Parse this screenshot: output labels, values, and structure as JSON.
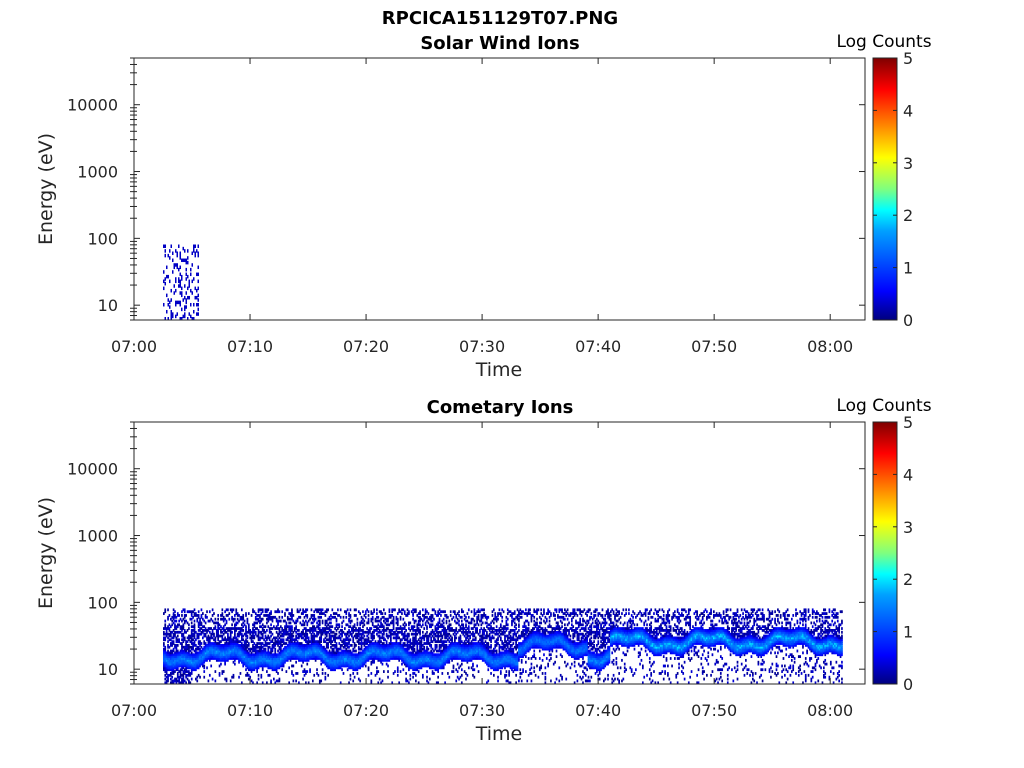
{
  "figure": {
    "filename": "RPCICA151129T07.PNG"
  },
  "colormap": {
    "stops": [
      "#00007f",
      "#0000ff",
      "#007fff",
      "#00ffff",
      "#7fff7f",
      "#ffff00",
      "#ff7f00",
      "#ff0000",
      "#7f0000"
    ]
  },
  "chart_data": [
    {
      "type": "heatmap",
      "title": "Solar Wind Ions",
      "xlabel": "Time",
      "ylabel": "Energy (eV)",
      "y_scale": "log",
      "xlim": [
        "07:00",
        "08:03"
      ],
      "ylim": [
        6,
        50000
      ],
      "x_ticks": [
        "07:00",
        "07:10",
        "07:20",
        "07:30",
        "07:40",
        "07:50",
        "08:00"
      ],
      "y_ticks": [
        {
          "value": 10,
          "label": "10"
        },
        {
          "value": 100,
          "label": "100"
        },
        {
          "value": 1000,
          "label": "1000"
        },
        {
          "value": 10000,
          "label": "10000"
        }
      ],
      "colorbar": {
        "label": "Log Counts",
        "range": [
          0,
          5
        ],
        "ticks": [
          "0",
          "1",
          "2",
          "3",
          "4",
          "5"
        ]
      },
      "data_summary": [
        {
          "t_start": "07:02.5",
          "t_end": "07:05.5",
          "e_min": 6,
          "e_max": 75,
          "log_counts": 0.3
        }
      ]
    },
    {
      "type": "heatmap",
      "title": "Cometary Ions",
      "xlabel": "Time",
      "ylabel": "Energy (eV)",
      "y_scale": "log",
      "xlim": [
        "07:00",
        "08:03"
      ],
      "ylim": [
        6,
        50000
      ],
      "x_ticks": [
        "07:00",
        "07:10",
        "07:20",
        "07:30",
        "07:40",
        "07:50",
        "08:00"
      ],
      "y_ticks": [
        {
          "value": 10,
          "label": "10"
        },
        {
          "value": 100,
          "label": "100"
        },
        {
          "value": 1000,
          "label": "1000"
        },
        {
          "value": 10000,
          "label": "10000"
        }
      ],
      "colorbar": {
        "label": "Log Counts",
        "range": [
          0,
          5
        ],
        "ticks": [
          "0",
          "1",
          "2",
          "3",
          "4",
          "5"
        ]
      },
      "data_summary": [
        {
          "t_start": "07:02.5",
          "t_end": "08:01",
          "e_min": 6,
          "e_max": 78,
          "peak_energy_eV": 15,
          "peak_log_counts": 1.6
        },
        {
          "t_start": "07:33",
          "t_end": "07:39",
          "e_min": 8,
          "e_max": 78,
          "peak_energy_eV": 22,
          "peak_log_counts": 1.5
        },
        {
          "t_start": "07:41",
          "t_end": "08:01",
          "e_min": 8,
          "e_max": 78,
          "peak_energy_eV": 25,
          "peak_log_counts": 1.8
        }
      ]
    }
  ]
}
